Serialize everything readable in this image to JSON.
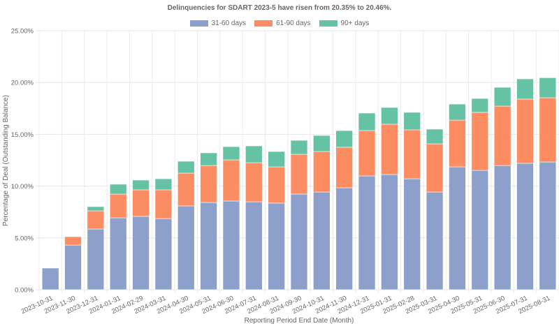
{
  "chart_data": {
    "type": "bar",
    "stacked": true,
    "title": "Delinquencies for SDART 2023-5 have risen from 20.35% to 20.46%.",
    "xlabel": "Reporting Period End Date (Month)",
    "ylabel": "Percentage of Deal (Outstanding Balance)",
    "ylim": [
      0,
      25
    ],
    "yticks": [
      "0.00%",
      "5.00%",
      "10.00%",
      "15.00%",
      "20.00%",
      "25.00%"
    ],
    "grid": true,
    "legend_position": "top",
    "categories": [
      "2023-10-31",
      "2023-11-30",
      "2023-12-31",
      "2024-01-31",
      "2024-02-29",
      "2024-03-31",
      "2024-04-30",
      "2024-05-31",
      "2024-06-30",
      "2024-07-31",
      "2024-08-31",
      "2024-09-30",
      "2024-10-31",
      "2024-11-30",
      "2024-12-31",
      "2025-01-31",
      "2025-02-28",
      "2025-03-31",
      "2025-04-30",
      "2025-05-31",
      "2025-06-30",
      "2025-07-31",
      "2025-08-31"
    ],
    "series": [
      {
        "name": "31-60 days",
        "color": "#8da0cb",
        "values": [
          2.09,
          4.31,
          5.86,
          6.94,
          7.08,
          6.87,
          8.09,
          8.42,
          8.56,
          8.49,
          8.36,
          9.23,
          9.43,
          9.84,
          10.98,
          11.12,
          10.71,
          9.43,
          11.86,
          11.52,
          11.99,
          12.2,
          12.33
        ]
      },
      {
        "name": "61-90 days",
        "color": "#fc8d62",
        "values": [
          0.0,
          0.81,
          1.75,
          2.29,
          2.56,
          2.77,
          3.16,
          3.57,
          3.97,
          3.77,
          3.5,
          3.84,
          3.91,
          3.91,
          4.38,
          4.85,
          4.72,
          4.65,
          4.51,
          5.6,
          5.73,
          6.2,
          6.2
        ]
      },
      {
        "name": "90+ days",
        "color": "#66c2a5",
        "values": [
          0.0,
          0.0,
          0.41,
          0.95,
          0.94,
          1.07,
          1.15,
          1.22,
          1.28,
          1.62,
          1.48,
          1.35,
          1.55,
          1.61,
          1.69,
          1.62,
          1.69,
          1.42,
          1.55,
          1.34,
          1.82,
          1.95,
          1.93
        ]
      }
    ]
  }
}
